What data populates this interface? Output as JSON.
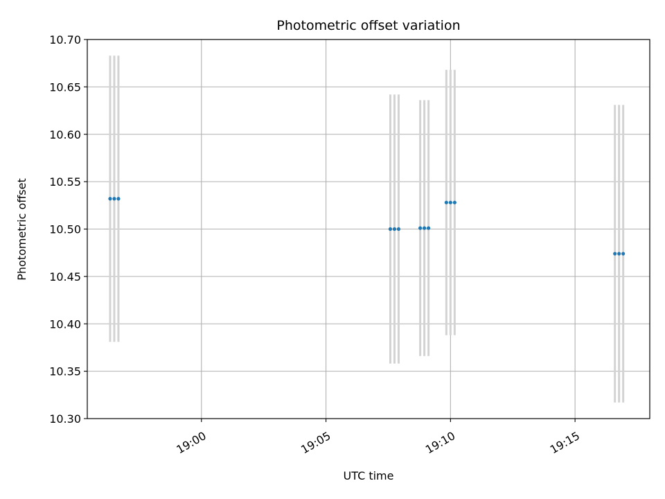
{
  "chart_data": {
    "type": "scatter",
    "title": "Photometric offset variation",
    "xlabel": "UTC time",
    "ylabel": "Photometric offset",
    "x_axis_type": "time",
    "xlim": [
      "18:55:25",
      "19:18:00"
    ],
    "ylim": [
      10.3,
      10.7
    ],
    "x_ticks": [
      "19:00",
      "19:05",
      "19:10",
      "19:15"
    ],
    "y_ticks": [
      "10.30",
      "10.35",
      "10.40",
      "10.45",
      "10.50",
      "10.55",
      "10.60",
      "10.65",
      "10.70"
    ],
    "grid": true,
    "series": [
      {
        "marker_color": "#1f77b4",
        "errorbar_color": "#d3d3d3",
        "points": [
          {
            "x": "18:56:20",
            "y": 10.532,
            "yerr": 0.151
          },
          {
            "x": "18:56:30",
            "y": 10.532,
            "yerr": 0.151
          },
          {
            "x": "18:56:40",
            "y": 10.532,
            "yerr": 0.151
          },
          {
            "x": "19:07:35",
            "y": 10.5,
            "yerr": 0.142
          },
          {
            "x": "19:07:45",
            "y": 10.5,
            "yerr": 0.142
          },
          {
            "x": "19:07:55",
            "y": 10.5,
            "yerr": 0.142
          },
          {
            "x": "19:08:47",
            "y": 10.501,
            "yerr": 0.135
          },
          {
            "x": "19:08:57",
            "y": 10.501,
            "yerr": 0.135
          },
          {
            "x": "19:09:07",
            "y": 10.501,
            "yerr": 0.135
          },
          {
            "x": "19:09:50",
            "y": 10.528,
            "yerr": 0.14
          },
          {
            "x": "19:10:00",
            "y": 10.528,
            "yerr": 0.14
          },
          {
            "x": "19:10:10",
            "y": 10.528,
            "yerr": 0.14
          },
          {
            "x": "19:16:36",
            "y": 10.474,
            "yerr": 0.157
          },
          {
            "x": "19:16:46",
            "y": 10.474,
            "yerr": 0.157
          },
          {
            "x": "19:16:56",
            "y": 10.474,
            "yerr": 0.157
          }
        ]
      }
    ]
  }
}
